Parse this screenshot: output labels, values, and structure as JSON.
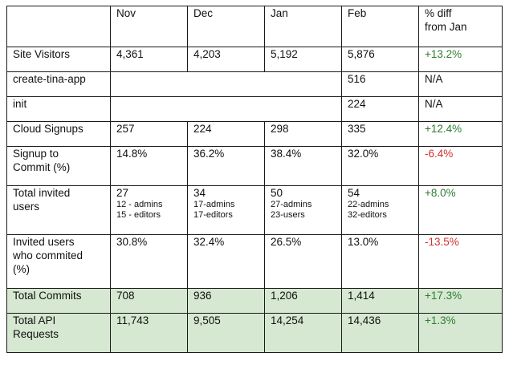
{
  "columns": [
    "",
    "Nov",
    "Dec",
    "Jan",
    "Feb",
    "% diff\nfrom Jan"
  ],
  "header": {
    "c0": "",
    "c1": "Nov",
    "c2": "Dec",
    "c3": "Jan",
    "c4": "Feb",
    "c5_line1": "% diff",
    "c5_line2": "from Jan"
  },
  "rows": [
    {
      "label": "Site Visitors",
      "nov": "4,361",
      "dec": "4,203",
      "jan": "5,192",
      "feb": "5,876",
      "diff": "+13.2%"
    },
    {
      "label": "create-tina-app",
      "feb": "516",
      "diff": "N/A"
    },
    {
      "label": "init",
      "feb": "224",
      "diff": "N/A"
    },
    {
      "label": "Cloud Signups",
      "nov": "257",
      "dec": "224",
      "jan": "298",
      "feb": "335",
      "diff": "+12.4%"
    },
    {
      "label_l1": "Signup to",
      "label_l2": "Commit (%)",
      "nov": "14.8%",
      "dec": "36.2%",
      "jan": "38.4%",
      "feb": "32.0%",
      "diff": "-6.4%"
    },
    {
      "label_l1": "Total invited",
      "label_l2": "users",
      "nov": "27",
      "nov_s1": "12 - admins",
      "nov_s2": "15 - editors",
      "dec": "34",
      "dec_s1": "17-admins",
      "dec_s2": "17-editors",
      "jan": "50",
      "jan_s1": "27-admins",
      "jan_s2": "23-users",
      "feb": "54",
      "feb_s1": "22-admins",
      "feb_s2": "32-editors",
      "diff": "+8.0%"
    },
    {
      "label_l1": "Invited users",
      "label_l2": "who commited",
      "label_l3": "(%)",
      "nov": "30.8%",
      "dec": "32.4%",
      "jan": "26.5%",
      "feb": "13.0%",
      "diff": "-13.5%"
    },
    {
      "label": "Total Commits",
      "nov": "708",
      "dec": "936",
      "jan": "1,206",
      "feb": "1,414",
      "diff": "+17.3%"
    },
    {
      "label_l1": "Total API",
      "label_l2": "Requests",
      "nov": "11,743",
      "dec": "9,505",
      "jan": "14,254",
      "feb": "14,436",
      "diff": "+1.3%"
    }
  ],
  "colors": {
    "positive": "#2e7d32",
    "negative": "#d32f2f",
    "highlight_row": "#d6e8d1",
    "border": "#1a1a1a"
  }
}
